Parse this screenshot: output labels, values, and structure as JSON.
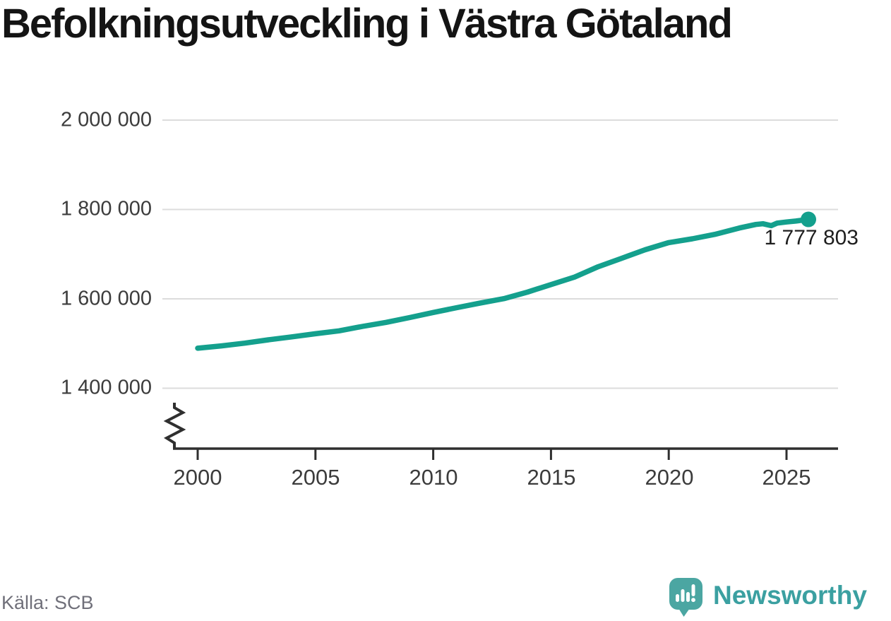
{
  "title": "Befolkningsutveckling i Västra Götaland",
  "footer": {
    "source": "Källa: SCB",
    "brand_name": "Newsworthy"
  },
  "colors": {
    "line": "#14A08D",
    "grid": "#DCDCDC",
    "axis": "#2F2F2F",
    "tick_label": "#3C3C3C",
    "title_text": "#141414",
    "annotation_text": "#1E1E1E",
    "source_text": "#70707A",
    "brand_text": "#3BA0A1",
    "logo_fill": "#4BA6A2"
  },
  "chart_data": {
    "type": "line",
    "title": "Befolkningsutveckling i Västra Götaland",
    "x": [
      2000,
      2001,
      2002,
      2003,
      2004,
      2005,
      2006,
      2007,
      2008,
      2009,
      2010,
      2011,
      2012,
      2013,
      2014,
      2015,
      2016,
      2017,
      2018,
      2019,
      2020,
      2021,
      2022,
      2023,
      2023.7,
      2024,
      2024.35,
      2024.6,
      2025,
      2025.4,
      2025.93
    ],
    "values": [
      1489460,
      1494641,
      1500857,
      1508230,
      1514992,
      1521895,
      1528455,
      1538284,
      1547298,
      1558130,
      1569458,
      1580297,
      1590604,
      1600447,
      1615084,
      1632012,
      1648682,
      1671783,
      1690782,
      1709814,
      1725881,
      1734443,
      1744859,
      1758656,
      1766500,
      1768000,
      1763800,
      1769500,
      1772000,
      1774000,
      1777803
    ],
    "end_point": {
      "x": 2025.93,
      "value": 1777803,
      "label": "1 777 803"
    },
    "yticks": [
      2000000,
      1800000,
      1600000,
      1400000
    ],
    "ytick_labels": [
      "2 000 000",
      "1 800 000",
      "1 600 000",
      "1 400 000"
    ],
    "xticks": [
      2000,
      2005,
      2010,
      2015,
      2020,
      2025
    ],
    "xtick_labels": [
      "2000",
      "2005",
      "2010",
      "2015",
      "2020",
      "2025"
    ],
    "xlim": [
      1999,
      2027.2
    ],
    "ylim_visible": [
      1400000,
      2000000
    ],
    "y_axis_break": true,
    "grid": true,
    "legend": "none",
    "source": "Källa: SCB"
  }
}
